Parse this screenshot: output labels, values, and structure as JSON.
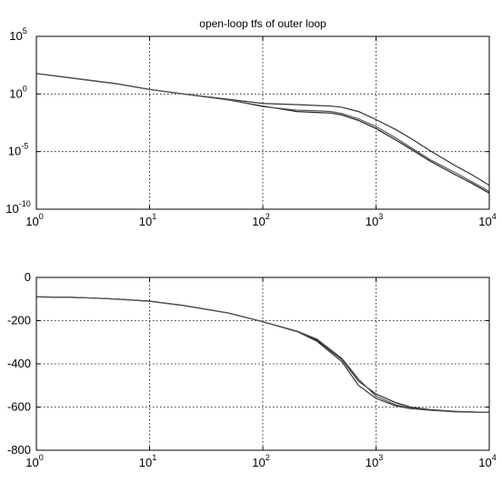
{
  "chart_data": [
    {
      "type": "line",
      "title": "open-loop tfs of outer loop",
      "xscale": "log",
      "yscale": "log",
      "xlim": [
        1,
        10000
      ],
      "ylim": [
        1e-10,
        100000
      ],
      "grid": true,
      "x_ticks": [
        {
          "base": "10",
          "exp": "0"
        },
        {
          "base": "10",
          "exp": "1"
        },
        {
          "base": "10",
          "exp": "2"
        },
        {
          "base": "10",
          "exp": "3"
        },
        {
          "base": "10",
          "exp": "4"
        }
      ],
      "y_ticks": [
        {
          "base": "10",
          "exp": "-10"
        },
        {
          "base": "10",
          "exp": "-5"
        },
        {
          "base": "10",
          "exp": "0"
        },
        {
          "base": "10",
          "exp": "5"
        }
      ],
      "x": [
        1,
        2,
        5,
        10,
        20,
        50,
        100,
        200,
        300,
        400,
        500,
        700,
        1000,
        1500,
        2000,
        3000,
        5000,
        7000,
        10000
      ],
      "series": [
        {
          "values": [
            60,
            25,
            8,
            2.5,
            1,
            0.3,
            0.09,
            0.03,
            0.025,
            0.022,
            0.015,
            0.005,
            0.001,
            0.0001,
            1.8e-05,
            1.5e-06,
            1e-07,
            1.8e-08,
            2.5e-09
          ]
        },
        {
          "values": [
            60,
            25,
            8,
            2.5,
            1,
            0.35,
            0.15,
            0.12,
            0.1,
            0.09,
            0.07,
            0.03,
            0.006,
            0.0008,
            0.00015,
            1.2e-05,
            6e-07,
            1e-07,
            1.2e-08
          ]
        },
        {
          "values": [
            60,
            25,
            8,
            2.5,
            1,
            0.32,
            0.08,
            0.04,
            0.035,
            0.03,
            0.02,
            0.007,
            0.0015,
            0.00015,
            2.5e-05,
            2e-06,
            1.5e-07,
            2.5e-08,
            3.5e-09
          ]
        }
      ]
    },
    {
      "type": "line",
      "xscale": "log",
      "xlim": [
        1,
        10000
      ],
      "ylim": [
        -800,
        0
      ],
      "grid": true,
      "x_ticks": [
        {
          "base": "10",
          "exp": "0"
        },
        {
          "base": "10",
          "exp": "1"
        },
        {
          "base": "10",
          "exp": "2"
        },
        {
          "base": "10",
          "exp": "3"
        },
        {
          "base": "10",
          "exp": "4"
        }
      ],
      "y_ticks": [
        "-800",
        "-600",
        "-400",
        "-200",
        "0"
      ],
      "y_tick_values": [
        -800,
        -600,
        -400,
        -200,
        0
      ],
      "x": [
        1,
        2,
        3,
        5,
        10,
        20,
        50,
        100,
        200,
        300,
        500,
        700,
        1000,
        1500,
        2000,
        3000,
        5000,
        10000
      ],
      "series": [
        {
          "values": [
            -90,
            -92,
            -95,
            -100,
            -110,
            -130,
            -165,
            -205,
            -250,
            -290,
            -380,
            -480,
            -540,
            -580,
            -600,
            -612,
            -620,
            -625
          ]
        },
        {
          "values": [
            -90,
            -92,
            -95,
            -100,
            -110,
            -130,
            -165,
            -205,
            -250,
            -295,
            -390,
            -500,
            -560,
            -595,
            -607,
            -615,
            -622,
            -625
          ]
        },
        {
          "values": [
            -90,
            -92,
            -95,
            -100,
            -110,
            -130,
            -165,
            -205,
            -248,
            -285,
            -375,
            -470,
            -550,
            -590,
            -605,
            -614,
            -621,
            -625
          ]
        }
      ]
    }
  ]
}
